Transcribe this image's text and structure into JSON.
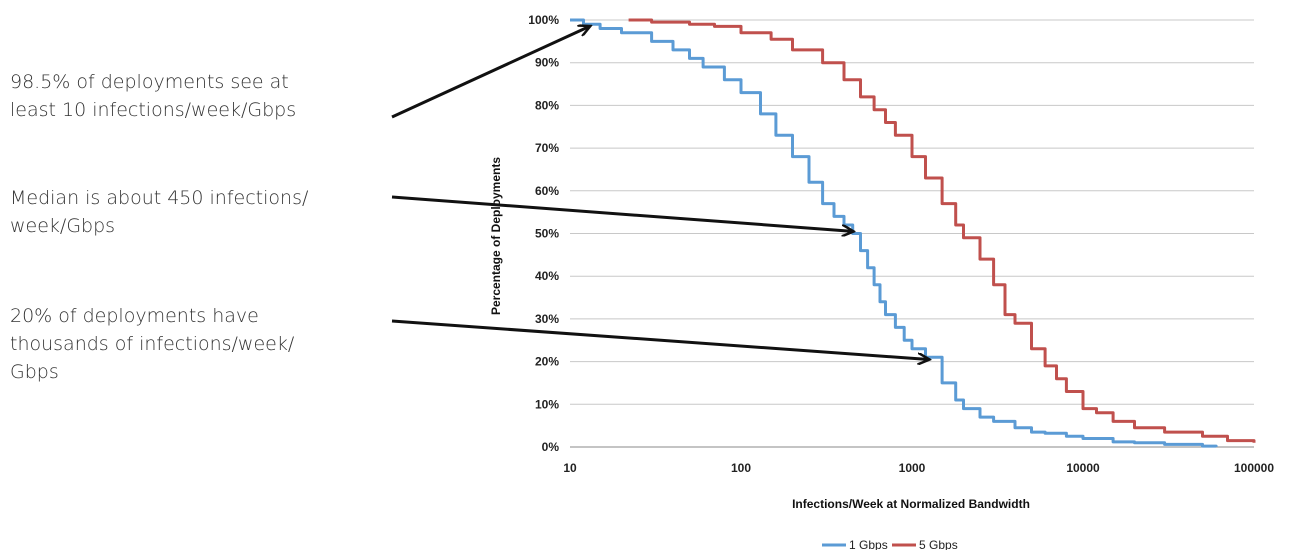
{
  "annotations": [
    {
      "text": "98.5% of deployments see at\nleast 10 infections/week/Gbps",
      "target": {
        "x": 13,
        "y": 98.5
      }
    },
    {
      "text": "Median is about 450 infections/\nweek/Gbps",
      "target": {
        "x": 450,
        "y": 50.5
      }
    },
    {
      "text": "20% of deployments have\nthousands of infections/week/\nGbps",
      "target": {
        "x": 1250,
        "y": 20.5
      }
    }
  ],
  "chart_data": {
    "type": "line",
    "title": "",
    "xlabel": "Infections/Week at Normalized Bandwidth",
    "ylabel": "Percentage of Deployments",
    "xscale": "log",
    "xlim": [
      10,
      100000
    ],
    "ylim": [
      0,
      100
    ],
    "x_ticks": [
      "10",
      "100",
      "1000",
      "10000",
      "100000"
    ],
    "y_ticks": [
      "0%",
      "10%",
      "20%",
      "30%",
      "40%",
      "50%",
      "60%",
      "70%",
      "80%",
      "90%",
      "100%"
    ],
    "grid": "horizontal",
    "legend_position": "bottom",
    "series": [
      {
        "name": "1 Gbps",
        "color": "#5b9bd5",
        "points": [
          [
            10,
            100
          ],
          [
            12,
            99
          ],
          [
            15,
            98
          ],
          [
            20,
            97
          ],
          [
            30,
            95
          ],
          [
            40,
            93
          ],
          [
            50,
            91
          ],
          [
            60,
            89
          ],
          [
            80,
            86
          ],
          [
            100,
            83
          ],
          [
            130,
            78
          ],
          [
            160,
            73
          ],
          [
            200,
            68
          ],
          [
            250,
            62
          ],
          [
            300,
            57
          ],
          [
            350,
            54
          ],
          [
            400,
            52
          ],
          [
            450,
            50
          ],
          [
            500,
            46
          ],
          [
            550,
            42
          ],
          [
            600,
            38
          ],
          [
            650,
            34
          ],
          [
            700,
            31
          ],
          [
            800,
            28
          ],
          [
            900,
            25
          ],
          [
            1000,
            23
          ],
          [
            1200,
            21
          ],
          [
            1500,
            15
          ],
          [
            1800,
            11
          ],
          [
            2000,
            9
          ],
          [
            2500,
            7
          ],
          [
            3000,
            6
          ],
          [
            4000,
            4.5
          ],
          [
            5000,
            3.5
          ],
          [
            6000,
            3.2
          ],
          [
            8000,
            2.5
          ],
          [
            10000,
            2
          ],
          [
            15000,
            1.2
          ],
          [
            20000,
            1
          ],
          [
            30000,
            0.6
          ],
          [
            50000,
            0.2
          ],
          [
            60000,
            0
          ]
        ]
      },
      {
        "name": "5 Gbps",
        "color": "#c0504d",
        "points": [
          [
            22,
            100
          ],
          [
            30,
            99.5
          ],
          [
            50,
            99
          ],
          [
            70,
            98.5
          ],
          [
            100,
            97
          ],
          [
            150,
            95.5
          ],
          [
            200,
            93
          ],
          [
            300,
            90
          ],
          [
            400,
            86
          ],
          [
            500,
            82
          ],
          [
            600,
            79
          ],
          [
            700,
            76
          ],
          [
            800,
            73
          ],
          [
            1000,
            68
          ],
          [
            1200,
            63
          ],
          [
            1500,
            57
          ],
          [
            1800,
            52
          ],
          [
            2000,
            49
          ],
          [
            2500,
            44
          ],
          [
            3000,
            38
          ],
          [
            3500,
            31
          ],
          [
            4000,
            29
          ],
          [
            5000,
            23
          ],
          [
            6000,
            19
          ],
          [
            7000,
            16
          ],
          [
            8000,
            13
          ],
          [
            10000,
            9
          ],
          [
            12000,
            8
          ],
          [
            15000,
            6
          ],
          [
            20000,
            4.5
          ],
          [
            30000,
            3.5
          ],
          [
            50000,
            2.5
          ],
          [
            70000,
            1.5
          ],
          [
            100000,
            1
          ]
        ]
      }
    ]
  }
}
